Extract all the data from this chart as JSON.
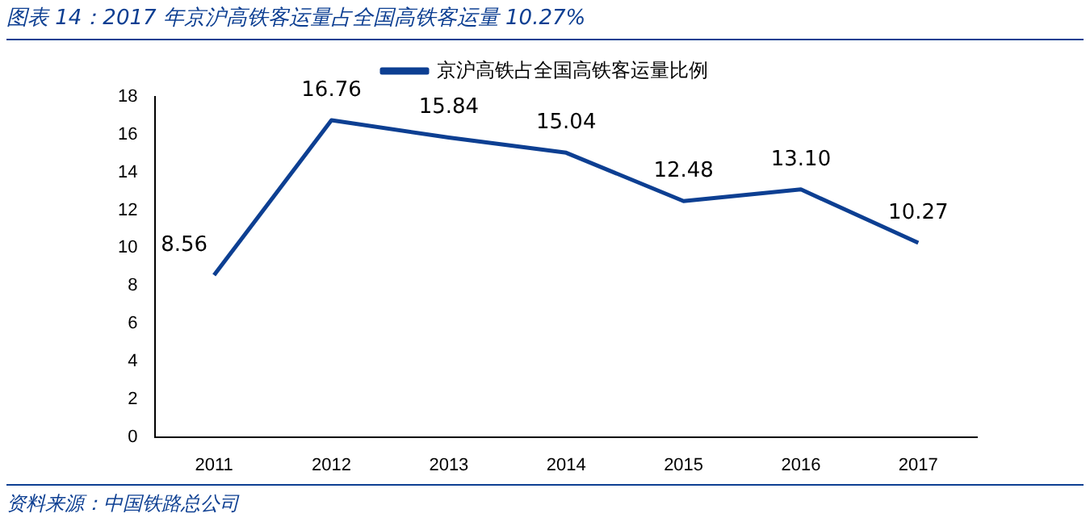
{
  "chart_data": {
    "type": "line",
    "title": "图表 14：2017 年京沪高铁客运量占全国高铁客运量 10.27%",
    "categories": [
      "2011",
      "2012",
      "2013",
      "2014",
      "2015",
      "2016",
      "2017"
    ],
    "series": [
      {
        "name": "京沪高铁占全国高铁客运量比例",
        "color": "#0d3f92",
        "values": [
          8.56,
          16.76,
          15.84,
          15.04,
          12.48,
          13.1,
          10.27
        ],
        "value_labels": [
          "8.56",
          "16.76",
          "15.84",
          "15.04",
          "12.48",
          "13.10",
          "10.27"
        ]
      }
    ],
    "ylim": [
      0,
      18
    ],
    "yticks": [
      0,
      2,
      4,
      6,
      8,
      10,
      12,
      14,
      16,
      18
    ],
    "grid": false,
    "legend": "top",
    "marker": "none",
    "line_style": "solid",
    "annotations": [
      "资料来源：中国铁路总公司"
    ]
  }
}
